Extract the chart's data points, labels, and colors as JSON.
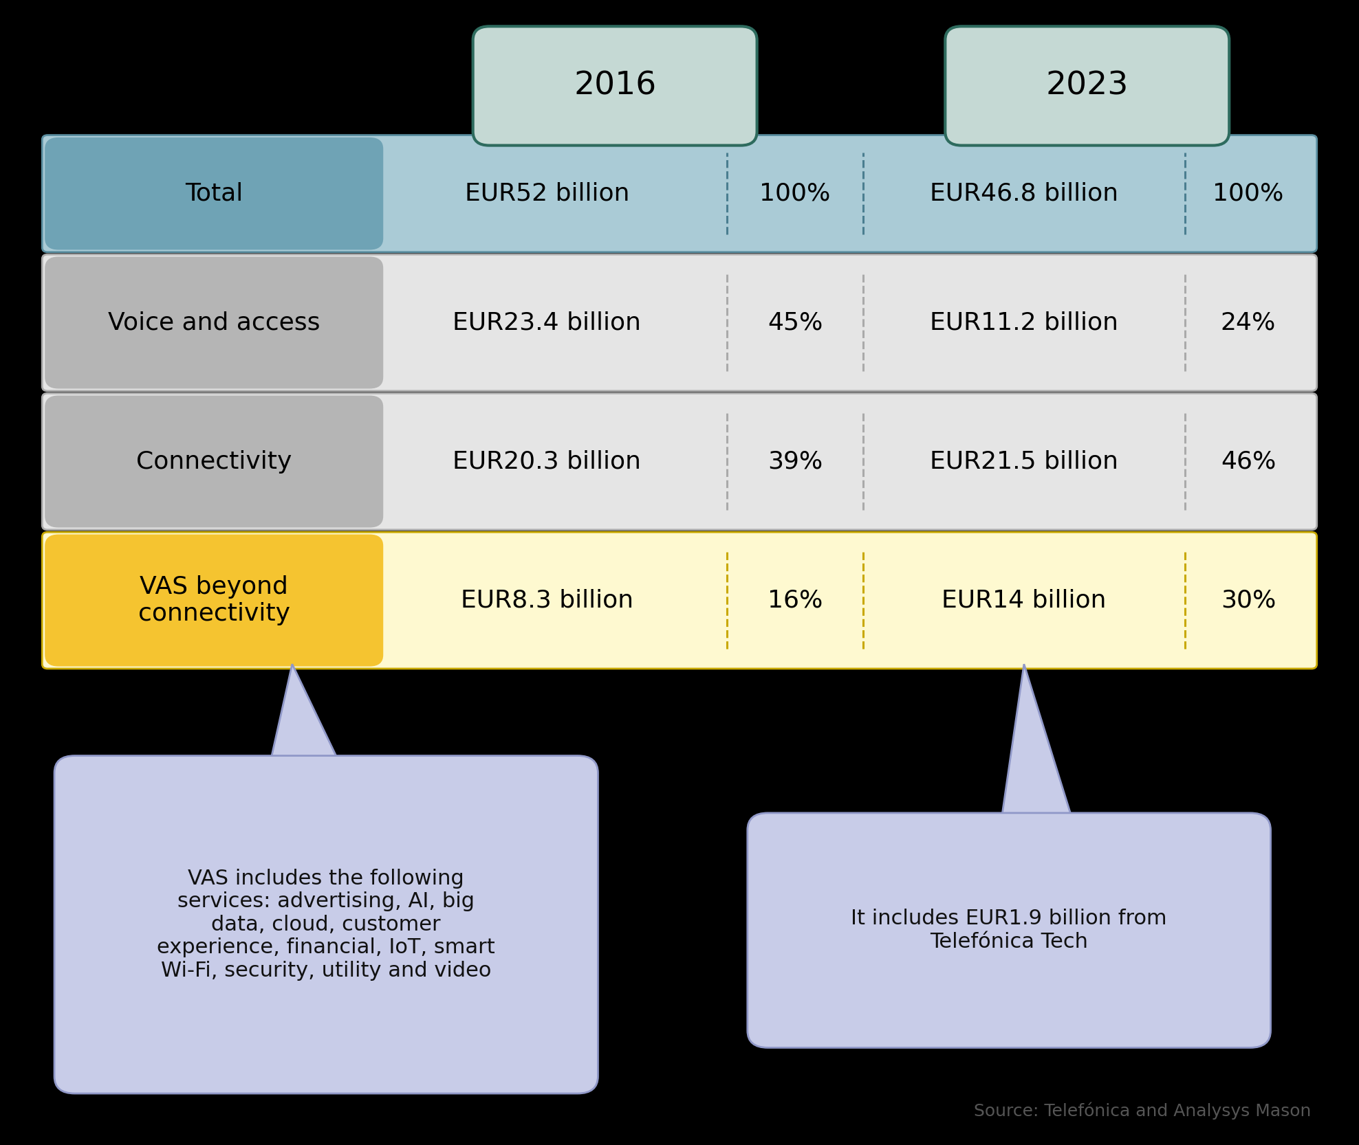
{
  "bg_color": "#000000",
  "year_box_color": "#c5d9d4",
  "year_box_edge_color": "#2e6b5e",
  "rows": [
    {
      "label": "Total",
      "label_bg": "#6fa3b5",
      "label_fg": "#000000",
      "row_bg": "#aacbd6",
      "row_border": "#5a8ea0",
      "val2016": "EUR52 billion",
      "pct2016": "100%",
      "val2023": "EUR46.8 billion",
      "pct2023": "100%",
      "divider_color": "#4a7e90",
      "divider_style": "--"
    },
    {
      "label": "Voice and access",
      "label_bg": "#b5b5b5",
      "label_fg": "#000000",
      "row_bg": "#e5e5e5",
      "row_border": "#aaaaaa",
      "val2016": "EUR23.4 billion",
      "pct2016": "45%",
      "val2023": "EUR11.2 billion",
      "pct2023": "24%",
      "divider_color": "#aaaaaa",
      "divider_style": "--"
    },
    {
      "label": "Connectivity",
      "label_bg": "#b5b5b5",
      "label_fg": "#000000",
      "row_bg": "#e5e5e5",
      "row_border": "#aaaaaa",
      "val2016": "EUR20.3 billion",
      "pct2016": "39%",
      "val2023": "EUR21.5 billion",
      "pct2023": "46%",
      "divider_color": "#aaaaaa",
      "divider_style": "--"
    },
    {
      "label": "VAS beyond\nconnectivity",
      "label_bg": "#f5c430",
      "label_fg": "#000000",
      "row_bg": "#fef9d0",
      "row_border": "#c8a800",
      "val2016": "EUR8.3 billion",
      "pct2016": "16%",
      "val2023": "EUR14 billion",
      "pct2023": "30%",
      "divider_color": "#c8a800",
      "divider_style": "--"
    }
  ],
  "callout1_text": "VAS includes the following\nservices: advertising, AI, big\ndata, cloud, customer\nexperience, financial, IoT, smart\nWi-Fi, security, utility and video",
  "callout2_text": "It includes EUR1.9 billion from\nTelefónica Tech",
  "callout_bg": "#c8cce8",
  "callout_border": "#9098c8",
  "source_text": "Source: Telefónica and Analysys Mason"
}
